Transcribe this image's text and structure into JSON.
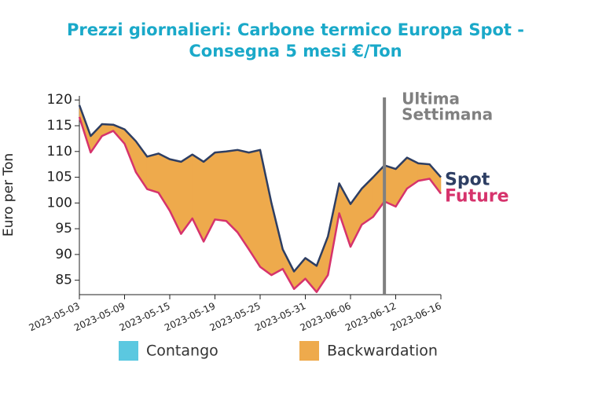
{
  "chart_data": {
    "type": "line",
    "title": [
      "Prezzi giornalieri: Carbone termico Europa Spot -",
      "Consegna 5 mesi €/Ton"
    ],
    "y_label": "Euro per Ton",
    "categories": [
      "2023-05-03",
      null,
      null,
      null,
      "2023-05-09",
      null,
      null,
      null,
      "2023-05-15",
      null,
      null,
      null,
      "2023-05-19",
      null,
      null,
      null,
      "2023-05-25",
      null,
      null,
      null,
      "2023-05-31",
      null,
      null,
      null,
      "2023-06-06",
      null,
      null,
      null,
      "2023-06-12",
      null,
      null,
      null,
      "2023-06-16"
    ],
    "series": [
      {
        "name": "Spot",
        "color": "#2d3e63",
        "values": [
          119,
          113,
          115.3,
          115.2,
          114.3,
          112,
          109,
          109.6,
          108.5,
          108,
          109.4,
          108,
          109.8,
          110,
          110.3,
          109.8,
          110.3,
          100,
          91,
          86.7,
          89.3,
          87.8,
          93.5,
          103.8,
          99.8,
          102.8,
          105,
          107.3,
          106.6,
          108.8,
          107.7,
          107.5,
          105
        ]
      },
      {
        "name": "Future",
        "color": "#d6336c",
        "values": [
          116.7,
          109.8,
          113,
          114,
          111.5,
          106,
          102.7,
          102,
          98.5,
          94,
          97,
          92.5,
          96.8,
          96.5,
          94.3,
          91,
          87.6,
          86,
          87.2,
          83.3,
          85.3,
          82.7,
          86,
          98,
          91.5,
          95.8,
          97.3,
          100.3,
          99.3,
          102.8,
          104.3,
          104.7,
          101.8
        ]
      }
    ],
    "fill_legend": [
      {
        "name": "Contango",
        "color": "#5bc8e0"
      },
      {
        "name": "Backwardation",
        "color": "#eeaa4c"
      }
    ],
    "annotation": {
      "text": [
        "Ultima",
        "Settimana"
      ],
      "at": 27,
      "color": "#808080"
    },
    "ylim": [
      82.2,
      120.8
    ],
    "yticks": [
      85,
      90,
      95,
      100,
      105,
      110,
      115,
      120
    ]
  }
}
